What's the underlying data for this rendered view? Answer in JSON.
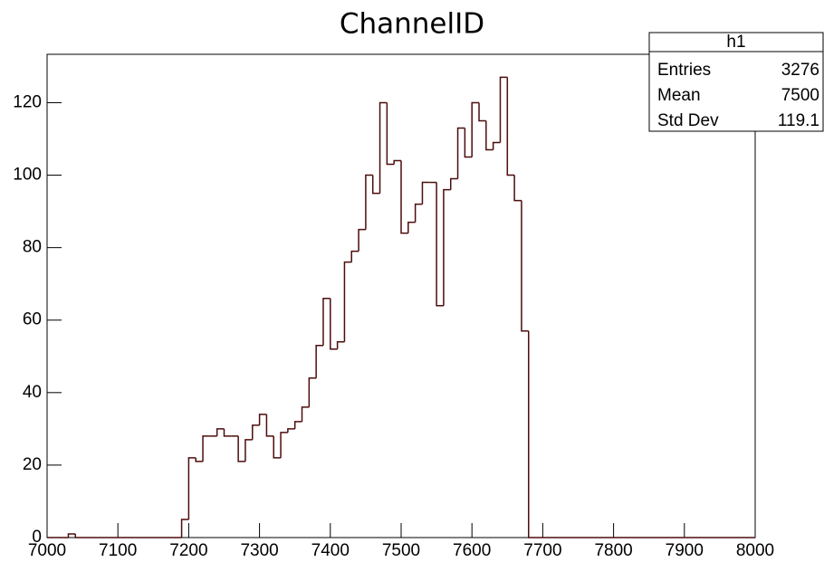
{
  "chart_data": {
    "type": "histogram",
    "title": "ChannelID",
    "bins": [
      7000,
      7010,
      7020,
      7030,
      7040,
      7050,
      7060,
      7070,
      7080,
      7090,
      7100,
      7110,
      7120,
      7130,
      7140,
      7150,
      7160,
      7170,
      7180,
      7190,
      7200,
      7210,
      7220,
      7230,
      7240,
      7250,
      7260,
      7270,
      7280,
      7290,
      7300,
      7310,
      7320,
      7330,
      7340,
      7350,
      7360,
      7370,
      7380,
      7390,
      7400,
      7410,
      7420,
      7430,
      7440,
      7450,
      7460,
      7470,
      7480,
      7490,
      7500,
      7510,
      7520,
      7530,
      7540,
      7550,
      7560,
      7570,
      7580,
      7590,
      7600,
      7610,
      7620,
      7630,
      7640,
      7650,
      7660,
      7670,
      7680,
      7690,
      7700,
      7710,
      7720,
      7730,
      7740,
      7750,
      7760,
      7770,
      7780,
      7790,
      7800,
      7810,
      7820,
      7830,
      7840,
      7850,
      7860,
      7870,
      7880,
      7890,
      7900,
      7910,
      7920,
      7930,
      7940,
      7950,
      7960,
      7970,
      7980,
      7990,
      8000
    ],
    "values": [
      0,
      0,
      0,
      1,
      0,
      0,
      0,
      0,
      0,
      0,
      0,
      0,
      0,
      0,
      0,
      0,
      0,
      0,
      0,
      5,
      22,
      21,
      28,
      28,
      30,
      28,
      28,
      21,
      27,
      31,
      34,
      28,
      22,
      29,
      30,
      32,
      36,
      44,
      53,
      66,
      52,
      54,
      76,
      79,
      85,
      100,
      95,
      120,
      103,
      104,
      84,
      87,
      92,
      98,
      98,
      64,
      96,
      99,
      113,
      105,
      120,
      115,
      107,
      109,
      127,
      100,
      93,
      57,
      0,
      0,
      0,
      0,
      0,
      0,
      0,
      0,
      0,
      0,
      0,
      0,
      0,
      0,
      0,
      0,
      0,
      0,
      0,
      0,
      0,
      0,
      0,
      0,
      0,
      0,
      0,
      0,
      0,
      0,
      0,
      0
    ],
    "color": "#4d0c0c",
    "xlim": [
      7000,
      8000
    ],
    "xticks": [
      7000,
      7100,
      7200,
      7300,
      7400,
      7500,
      7600,
      7700,
      7800,
      7900,
      8000
    ],
    "ylim": [
      0,
      133.35
    ],
    "yticks": [
      0,
      20,
      40,
      60,
      80,
      100,
      120
    ],
    "stats_box": {
      "name": "h1",
      "rows": [
        {
          "label": "Entries",
          "value": 3276
        },
        {
          "label": "Mean",
          "value": 7500
        },
        {
          "label": "Std Dev",
          "value": 119.1
        }
      ]
    }
  }
}
